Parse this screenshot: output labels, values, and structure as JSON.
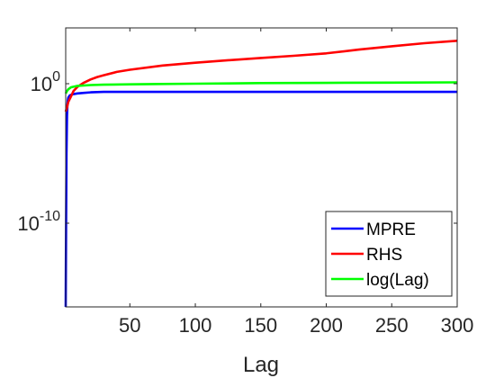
{
  "chart_data": {
    "type": "line",
    "xlabel": "Lag",
    "ylabel": "",
    "title": "",
    "xlim": [
      1,
      300
    ],
    "ylim": [
      1e-16,
      10000.0
    ],
    "yscale": "log",
    "xticks": [
      50,
      100,
      150,
      200,
      250,
      300
    ],
    "xtick_labels": [
      "50",
      "100",
      "150",
      "200",
      "250",
      "300"
    ],
    "yticks": [
      1e-10,
      1
    ],
    "ytick_labels": [
      {
        "base": "10",
        "exp": "-10"
      },
      {
        "base": "10",
        "exp": "0"
      }
    ],
    "grid": false,
    "legend_position": "bottom-right",
    "series": [
      {
        "name": "MPRE",
        "color": "#0000ff",
        "x": [
          1,
          1.3,
          1.6,
          2,
          2.3,
          2.6,
          3,
          4,
          5,
          7,
          10,
          15,
          20,
          25,
          30,
          40,
          50,
          100,
          150,
          200,
          250,
          300
        ],
        "y": [
          1e-16,
          1e-10,
          1e-05,
          0.005,
          0.03,
          0.06,
          0.1,
          0.14,
          0.16,
          0.18,
          0.2,
          0.22,
          0.24,
          0.25,
          0.26,
          0.26,
          0.26,
          0.26,
          0.26,
          0.26,
          0.26,
          0.26
        ]
      },
      {
        "name": "RHS",
        "color": "#ff0000",
        "x": [
          1,
          2,
          3,
          5,
          7,
          10,
          15,
          20,
          25,
          30,
          40,
          50,
          75,
          100,
          125,
          150,
          175,
          200,
          225,
          250,
          275,
          300
        ],
        "y": [
          0.01,
          0.02,
          0.05,
          0.12,
          0.3,
          0.6,
          1.2,
          2.0,
          3.0,
          4.0,
          7.0,
          10,
          20,
          32,
          48,
          70,
          100,
          150,
          280,
          480,
          800,
          1200
        ]
      },
      {
        "name": "log(Lag)",
        "color": "#00ff00",
        "x": [
          1,
          2,
          3,
          5,
          10,
          20,
          30,
          50,
          75,
          100,
          125,
          150,
          200,
          250,
          300
        ],
        "y": [
          0.2,
          0.3,
          0.4,
          0.55,
          0.7,
          0.8,
          0.85,
          0.9,
          0.95,
          1.0,
          1.05,
          1.1,
          1.15,
          1.2,
          1.25
        ]
      }
    ]
  }
}
